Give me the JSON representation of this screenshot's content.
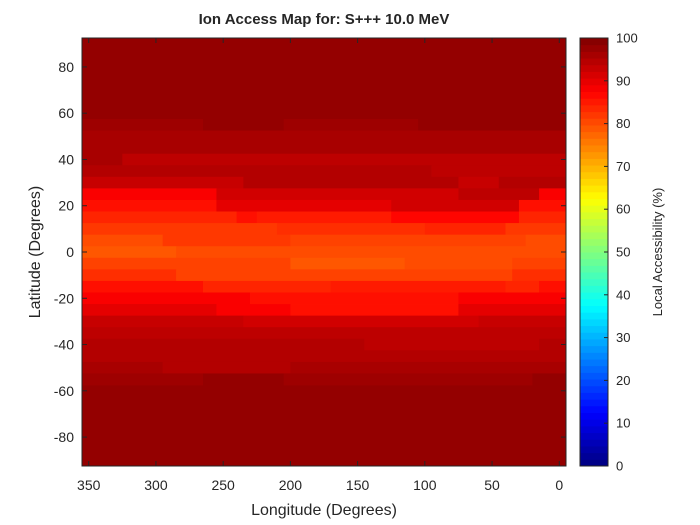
{
  "chart_data": {
    "type": "heatmap",
    "title": "Ion Access Map for: S+++ 10.0 MeV",
    "xlabel": "Longitude (Degrees)",
    "ylabel": "Latitude (Degrees)",
    "colorbar_label": "Local Accessibility (%)",
    "xlim": [
      355,
      -5
    ],
    "ylim": [
      -92.5,
      92.5
    ],
    "clim": [
      0,
      100
    ],
    "x_ticks": [
      350,
      300,
      250,
      200,
      150,
      100,
      50,
      0
    ],
    "y_ticks": [
      80,
      60,
      40,
      20,
      0,
      -20,
      -40,
      -60,
      -80
    ],
    "colorbar_ticks": [
      0,
      10,
      20,
      30,
      40,
      50,
      60,
      70,
      80,
      90,
      100
    ],
    "colormap": "jet",
    "grid": false,
    "rows": [
      {
        "lat_top": 92.5,
        "lat_bottom": 52.5,
        "segments": [
          [
            355,
            -5,
            98
          ]
        ]
      },
      {
        "lat_top": 57.5,
        "lat_bottom": 52.5,
        "segments": [
          [
            355,
            265,
            97
          ],
          [
            265,
            205,
            98
          ],
          [
            205,
            105,
            97
          ],
          [
            105,
            -5,
            98
          ]
        ]
      },
      {
        "lat_top": 52.5,
        "lat_bottom": 42.5,
        "segments": [
          [
            355,
            -5,
            96
          ]
        ]
      },
      {
        "lat_top": 42.5,
        "lat_bottom": 37.5,
        "segments": [
          [
            355,
            325,
            96
          ],
          [
            325,
            -5,
            94
          ]
        ]
      },
      {
        "lat_top": 37.5,
        "lat_bottom": 32.5,
        "segments": [
          [
            355,
            95,
            95
          ],
          [
            95,
            -5,
            94
          ]
        ]
      },
      {
        "lat_top": 32.5,
        "lat_bottom": 27.5,
        "segments": [
          [
            355,
            235,
            93
          ],
          [
            235,
            75,
            95
          ],
          [
            75,
            45,
            93
          ],
          [
            45,
            -5,
            95
          ]
        ]
      },
      {
        "lat_top": 27.5,
        "lat_bottom": 22.5,
        "segments": [
          [
            355,
            255,
            88
          ],
          [
            255,
            75,
            92
          ],
          [
            75,
            15,
            94
          ],
          [
            15,
            -5,
            88
          ]
        ]
      },
      {
        "lat_top": 22.5,
        "lat_bottom": 17.5,
        "segments": [
          [
            355,
            255,
            86
          ],
          [
            255,
            125,
            90
          ],
          [
            125,
            30,
            92
          ],
          [
            30,
            -5,
            86
          ]
        ]
      },
      {
        "lat_top": 17.5,
        "lat_bottom": 12.5,
        "segments": [
          [
            355,
            240,
            84
          ],
          [
            240,
            225,
            86
          ],
          [
            225,
            125,
            85
          ],
          [
            125,
            30,
            87
          ],
          [
            30,
            -5,
            84
          ]
        ]
      },
      {
        "lat_top": 12.5,
        "lat_bottom": 7.5,
        "segments": [
          [
            355,
            210,
            82
          ],
          [
            210,
            100,
            83
          ],
          [
            100,
            40,
            84
          ],
          [
            40,
            -5,
            82
          ]
        ]
      },
      {
        "lat_top": 7.5,
        "lat_bottom": 2.5,
        "segments": [
          [
            355,
            295,
            80
          ],
          [
            295,
            240,
            82
          ],
          [
            240,
            200,
            82
          ],
          [
            200,
            25,
            81
          ],
          [
            25,
            -5,
            80
          ]
        ]
      },
      {
        "lat_top": 2.5,
        "lat_bottom": -2.5,
        "segments": [
          [
            355,
            285,
            79
          ],
          [
            285,
            210,
            80
          ],
          [
            210,
            65,
            80
          ],
          [
            65,
            -5,
            80
          ]
        ]
      },
      {
        "lat_top": -2.5,
        "lat_bottom": -7.5,
        "segments": [
          [
            355,
            200,
            81
          ],
          [
            200,
            115,
            79
          ],
          [
            115,
            35,
            80
          ],
          [
            35,
            -5,
            81
          ]
        ]
      },
      {
        "lat_top": -7.5,
        "lat_bottom": -12.5,
        "segments": [
          [
            355,
            285,
            83
          ],
          [
            285,
            35,
            81
          ],
          [
            35,
            -5,
            83
          ]
        ]
      },
      {
        "lat_top": -12.5,
        "lat_bottom": -17.5,
        "segments": [
          [
            355,
            265,
            86
          ],
          [
            265,
            170,
            84
          ],
          [
            170,
            40,
            85
          ],
          [
            40,
            15,
            84
          ],
          [
            15,
            -5,
            86
          ]
        ]
      },
      {
        "lat_top": -17.5,
        "lat_bottom": -22.5,
        "segments": [
          [
            355,
            230,
            88
          ],
          [
            230,
            75,
            86
          ],
          [
            75,
            -5,
            88
          ]
        ]
      },
      {
        "lat_top": -22.5,
        "lat_bottom": -27.5,
        "segments": [
          [
            355,
            255,
            90
          ],
          [
            255,
            200,
            88
          ],
          [
            200,
            75,
            86
          ],
          [
            75,
            -5,
            90
          ]
        ]
      },
      {
        "lat_top": -27.5,
        "lat_bottom": -32.5,
        "segments": [
          [
            355,
            235,
            93
          ],
          [
            235,
            60,
            92
          ],
          [
            60,
            -5,
            93
          ]
        ]
      },
      {
        "lat_top": -32.5,
        "lat_bottom": -37.5,
        "segments": [
          [
            355,
            -5,
            94
          ]
        ]
      },
      {
        "lat_top": -37.5,
        "lat_bottom": -42.5,
        "segments": [
          [
            355,
            145,
            95
          ],
          [
            145,
            15,
            94
          ],
          [
            15,
            -5,
            95
          ]
        ]
      },
      {
        "lat_top": -42.5,
        "lat_bottom": -47.5,
        "segments": [
          [
            355,
            -5,
            95
          ]
        ]
      },
      {
        "lat_top": -47.5,
        "lat_bottom": -52.5,
        "segments": [
          [
            355,
            295,
            96
          ],
          [
            295,
            200,
            95
          ],
          [
            200,
            115,
            96
          ],
          [
            115,
            -5,
            96
          ]
        ]
      },
      {
        "lat_top": -52.5,
        "lat_bottom": -92.5,
        "segments": [
          [
            355,
            -5,
            98
          ]
        ]
      },
      {
        "lat_top": -52.5,
        "lat_bottom": -57.5,
        "segments": [
          [
            355,
            265,
            97
          ],
          [
            265,
            205,
            98
          ],
          [
            205,
            90,
            97
          ],
          [
            90,
            20,
            97
          ],
          [
            20,
            -5,
            98
          ]
        ]
      }
    ]
  }
}
